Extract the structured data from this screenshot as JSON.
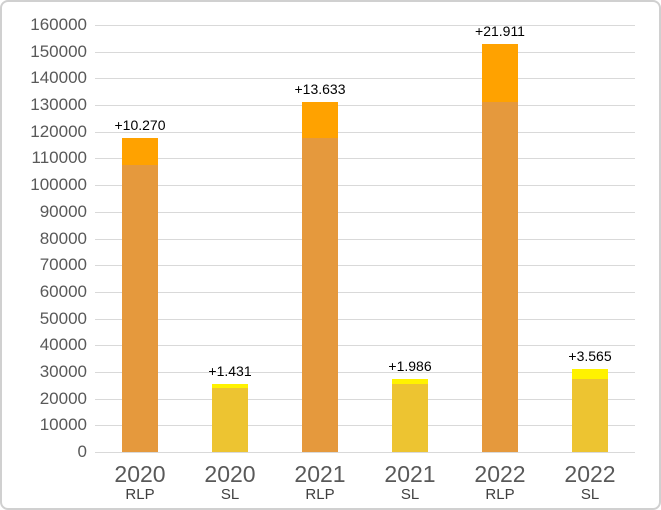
{
  "chart": {
    "background": "#ffffff",
    "frame_border_color": "#d0d0d0",
    "gridline_color": "#d9d9d9",
    "ytick_color": "#595959",
    "year_label_color": "#595959",
    "group_label_color": "#3f3f3f",
    "data_label_color": "#000000",
    "rlp_base_color": "#E5993D",
    "rlp_increase_color": "#FFA200",
    "sl_base_color": "#EDC431",
    "sl_increase_color": "#FFF200"
  },
  "chart_data": {
    "type": "bar",
    "stacked": true,
    "orientation": "vertical",
    "title": "",
    "xlabel": "",
    "ylabel": "",
    "legend": "none",
    "grid": "horizontal",
    "ylim": [
      0,
      160000
    ],
    "ytick_step": 10000,
    "ytick_labels": [
      "0",
      "10000",
      "20000",
      "30000",
      "40000",
      "50000",
      "60000",
      "70000",
      "80000",
      "90000",
      "100000",
      "110000",
      "120000",
      "130000",
      "140000",
      "150000",
      "160000"
    ],
    "categories": [
      "2020 RLP",
      "2020 SL",
      "2021 RLP",
      "2021 SL",
      "2022 RLP",
      "2022 SL"
    ],
    "bars": [
      {
        "year": "2020",
        "group": "RLP",
        "base_value": 107430,
        "increase_value": 10270,
        "total": 117700,
        "data_label": "+10.270",
        "base_color": "#E5993D",
        "increase_color": "#FFA200"
      },
      {
        "year": "2020",
        "group": "SL",
        "base_value": 24000,
        "increase_value": 1431,
        "total": 25431,
        "data_label": "+1.431",
        "base_color": "#EDC431",
        "increase_color": "#FFF200"
      },
      {
        "year": "2021",
        "group": "RLP",
        "base_value": 117700,
        "increase_value": 13633,
        "total": 131333,
        "data_label": "+13.633",
        "base_color": "#E5993D",
        "increase_color": "#FFA200"
      },
      {
        "year": "2021",
        "group": "SL",
        "base_value": 25431,
        "increase_value": 1986,
        "total": 27417,
        "data_label": "+1.986",
        "base_color": "#EDC431",
        "increase_color": "#FFF200"
      },
      {
        "year": "2022",
        "group": "RLP",
        "base_value": 131333,
        "increase_value": 21911,
        "total": 153244,
        "data_label": "+21.911",
        "base_color": "#E5993D",
        "increase_color": "#FFA200"
      },
      {
        "year": "2022",
        "group": "SL",
        "base_value": 27417,
        "increase_value": 3565,
        "total": 30982,
        "data_label": "+3.565",
        "base_color": "#EDC431",
        "increase_color": "#FFF200"
      }
    ]
  }
}
